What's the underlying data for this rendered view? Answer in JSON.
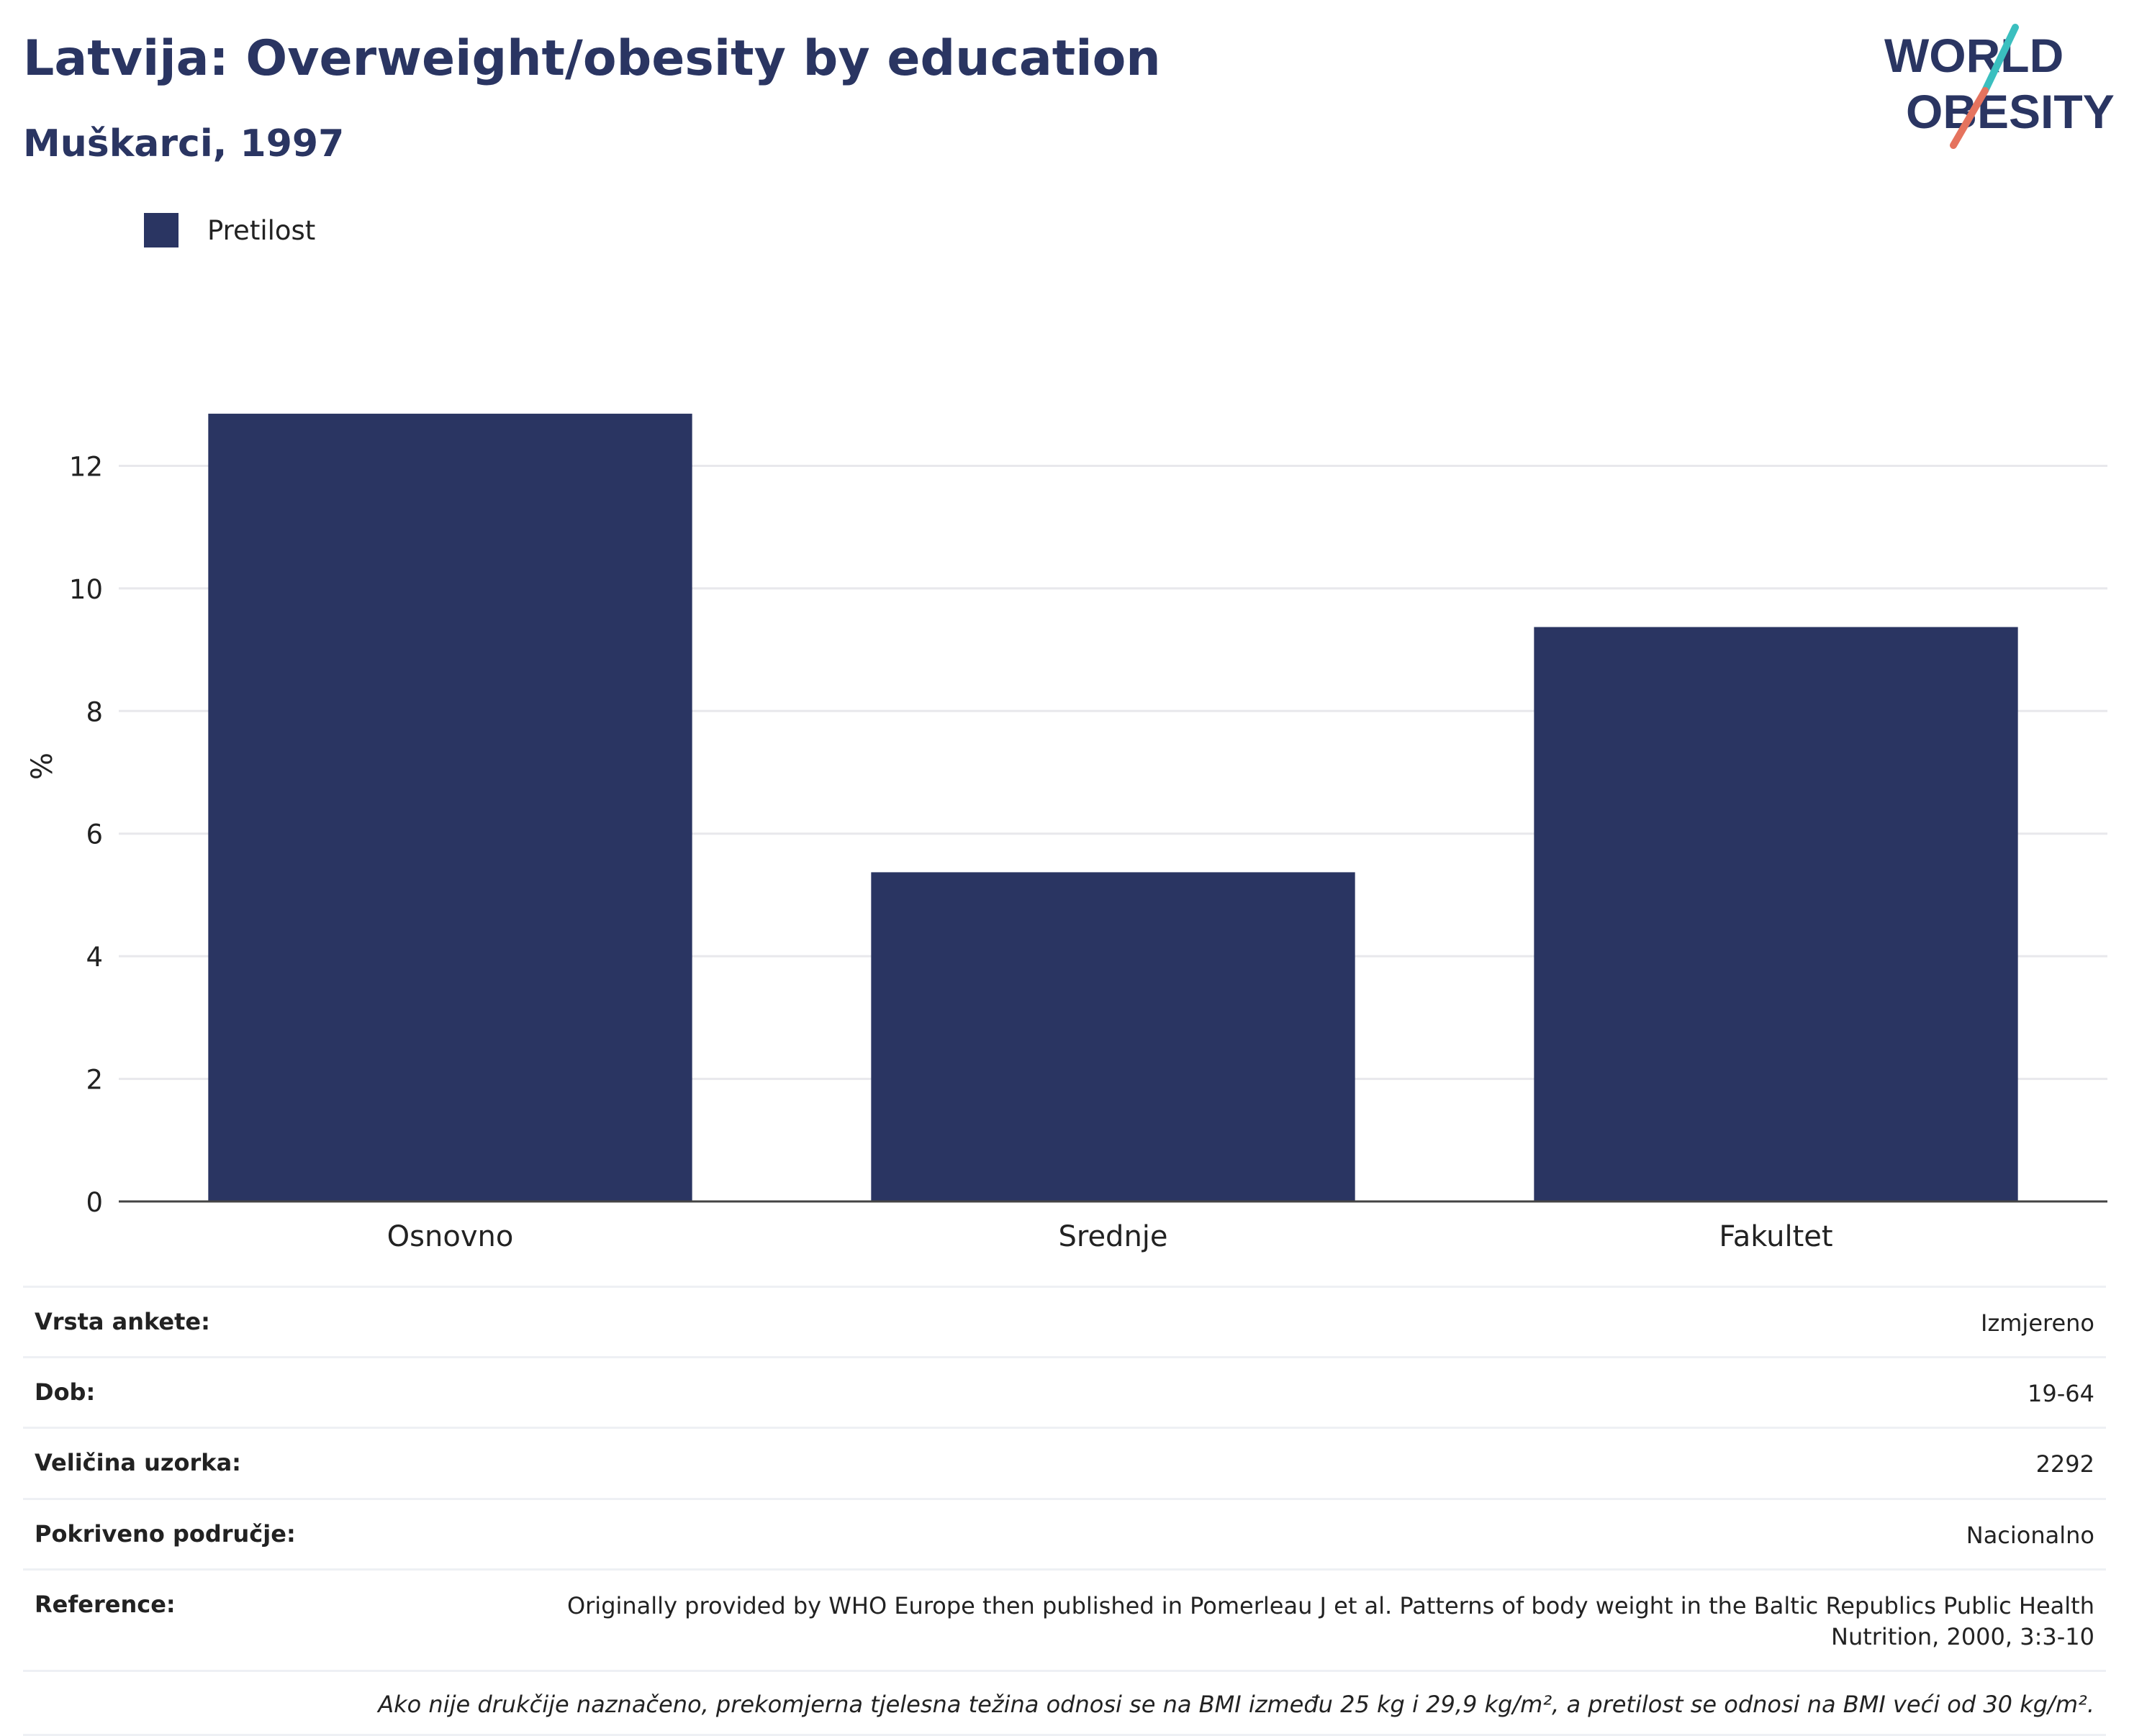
{
  "header": {
    "title": "Latvija: Overweight/obesity by education",
    "subtitle": "Muškarci, 1997",
    "logo_line1": "WORLD",
    "logo_line2": "OBESITY"
  },
  "colors": {
    "bar": "#2a3562",
    "logo_teal": "#3bbfbf",
    "logo_coral": "#e5735e",
    "grid": "#e8e8ec"
  },
  "chart_data": {
    "type": "bar",
    "categories": [
      "Osnovno",
      "Srednje",
      "Fakultet"
    ],
    "series": [
      {
        "name": "Pretilost",
        "values": [
          12.85,
          5.37,
          9.37
        ]
      }
    ],
    "ylabel": "%",
    "yticks": [
      0,
      2,
      4,
      6,
      8,
      10,
      12
    ],
    "ylim": [
      0,
      14.2
    ],
    "grid": true,
    "legend": "top-left"
  },
  "info": [
    {
      "label": "Vrsta ankete:",
      "value": "Izmjereno"
    },
    {
      "label": "Dob:",
      "value": "19-64"
    },
    {
      "label": "Veličina uzorka:",
      "value": "2292"
    },
    {
      "label": "Pokriveno područje:",
      "value": "Nacionalno"
    },
    {
      "label": "Reference:",
      "value": "Originally provided by WHO Europe then published in Pomerleau J et al. Patterns of body weight in the Baltic Republics Public Health Nutrition, 2000, 3:3-10"
    }
  ],
  "note": "Ako nije drukčije naznačeno, prekomjerna tjelesna težina odnosi se na BMI između 25 kg i 29,9 kg/m², a pretilost se odnosi na BMI veći od 30 kg/m²."
}
